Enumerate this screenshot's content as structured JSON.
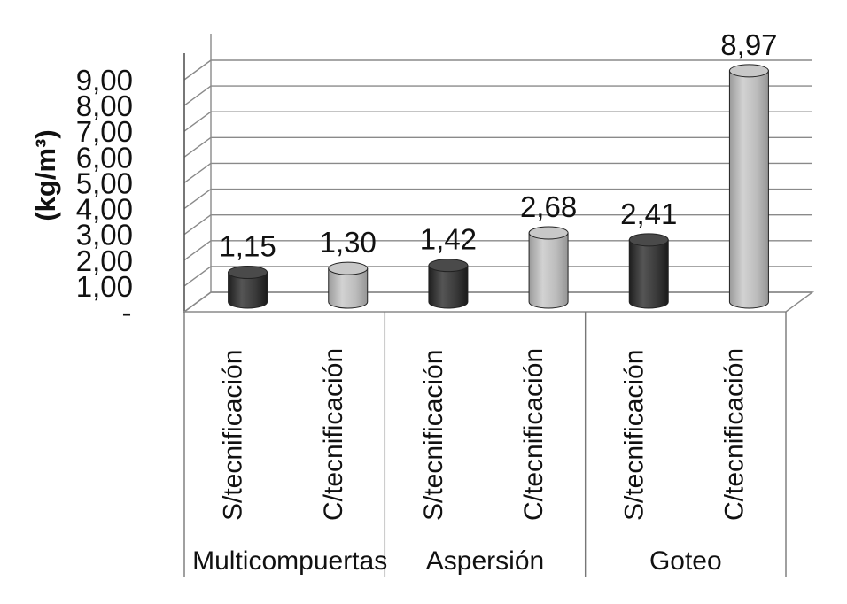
{
  "chart_data": {
    "type": "bar",
    "ylabel": "(kg/m³)",
    "ylim": [
      0,
      9
    ],
    "yticks": [
      "-",
      "1,00",
      "2,00",
      "3,00",
      "4,00",
      "5,00",
      "6,00",
      "7,00",
      "8,00",
      "9,00"
    ],
    "categories": [
      "S/tecnificación",
      "C/tecnificación",
      "S/tecnificación",
      "C/tecnificación",
      "S/tecnificación",
      "C/tecnificación"
    ],
    "groups": [
      {
        "name": "Multicompuertas",
        "span": [
          0,
          1
        ]
      },
      {
        "name": "Aspersión",
        "span": [
          2,
          3
        ]
      },
      {
        "name": "Goteo",
        "span": [
          4,
          5
        ]
      }
    ],
    "values": [
      1.15,
      1.3,
      1.42,
      2.68,
      2.41,
      8.97
    ],
    "value_labels": [
      "1,15",
      "1,30",
      "1,42",
      "2,68",
      "2,41",
      "8,97"
    ],
    "bar_tone": [
      "dark",
      "light",
      "dark",
      "light",
      "dark",
      "light"
    ],
    "colors": {
      "dark": "#3a3a3a",
      "light": "#b4b4b4",
      "grid": "#8a8a8a"
    },
    "grid": true,
    "legend": "none"
  }
}
